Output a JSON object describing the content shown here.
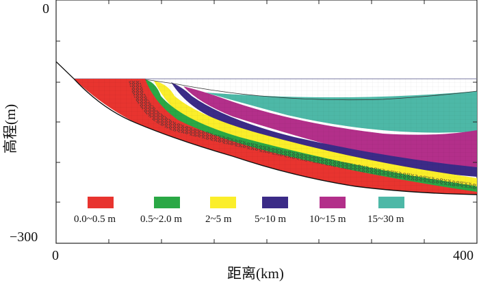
{
  "axes": {
    "y_top_tick": "0",
    "y_bottom_tick": "−300",
    "x_left_tick": "0",
    "x_right_tick": "400",
    "x_title": "距离(km)",
    "y_title": "高程(m)"
  },
  "legend": [
    {
      "label": "0.0~0.5 m",
      "color": "#e8342f"
    },
    {
      "label": "0.5~2.0 m",
      "color": "#2aa845"
    },
    {
      "label": "2~5 m",
      "color": "#fbee2a"
    },
    {
      "label": "5~10 m",
      "color": "#3b2b87"
    },
    {
      "label": "10~15 m",
      "color": "#b32f8a"
    },
    {
      "label": "15~30 m",
      "color": "#4db8a7"
    }
  ],
  "scale": {
    "x_range_km": [
      0,
      400
    ],
    "y_range_m": [
      -300,
      0
    ]
  }
}
